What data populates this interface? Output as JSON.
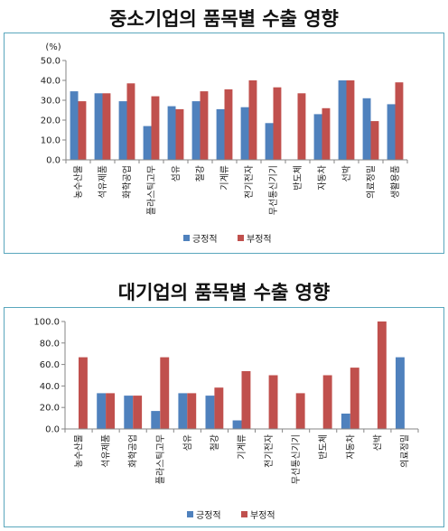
{
  "colors": {
    "positive": "#4f81bd",
    "negative": "#c0504d",
    "axis": "#868686",
    "border": "#5aa7bd"
  },
  "chart_data": [
    {
      "type": "bar",
      "title": "중소기업의 품목별 수출 영향",
      "ylabel": "(%)",
      "ylim": [
        0,
        50
      ],
      "yticks": [
        "0.0",
        "10.0",
        "20.0",
        "30.0",
        "40.0",
        "50.0"
      ],
      "grid": false,
      "legend": "bottom",
      "categories": [
        "농수산물",
        "석유제품",
        "화학공업",
        "플라스틱고무",
        "섬유",
        "철강",
        "기계류",
        "전기전자",
        "무선통신기기",
        "반도체",
        "자동차",
        "선박",
        "의료정밀",
        "생활용품"
      ],
      "series": [
        {
          "name": "긍정적",
          "values": [
            34.5,
            33.5,
            29.5,
            17,
            27,
            29.5,
            25.5,
            26.5,
            18.5,
            null,
            23,
            40,
            31,
            28
          ]
        },
        {
          "name": "부정적",
          "values": [
            29.5,
            33.5,
            38.5,
            32,
            25.5,
            34.5,
            35.5,
            40,
            36.5,
            33.5,
            26,
            40,
            19.5,
            39
          ]
        }
      ]
    },
    {
      "type": "bar",
      "title": "대기업의 품목별 수출 영향",
      "ylabel": "",
      "ylim": [
        0,
        100
      ],
      "yticks": [
        "0.0",
        "20.0",
        "40.0",
        "60.0",
        "80.0",
        "100.0"
      ],
      "grid": false,
      "legend": "bottom",
      "categories": [
        "농수산물",
        "석유제품",
        "화학공업",
        "플라스틱고무",
        "섬유",
        "철강",
        "기계류",
        "전기전자",
        "무선통신기기",
        "반도체",
        "자동차",
        "선박",
        "의료정밀"
      ],
      "series": [
        {
          "name": "긍정적",
          "values": [
            null,
            33.3,
            31,
            16.7,
            33.3,
            31,
            8,
            null,
            null,
            null,
            14.3,
            null,
            66.7
          ]
        },
        {
          "name": "부정적",
          "values": [
            66.7,
            33.3,
            31,
            66.7,
            33.3,
            38.5,
            53.8,
            50,
            33.3,
            50,
            57.1,
            100,
            null
          ]
        }
      ]
    }
  ]
}
